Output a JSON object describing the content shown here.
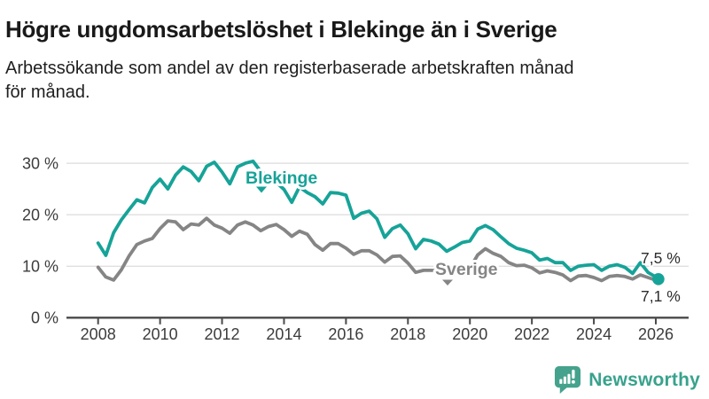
{
  "title": "Högre ungdomsarbetslöshet i Blekinge än i Sverige",
  "subtitle": "Arbetssökande som andel av den registerbaserade arbetskraften månad för månad.",
  "subtitle_lines": [
    "Arbetssökande som andel av den registerbaserade arbetskraften månad",
    "för månad."
  ],
  "branding": {
    "logo_text": "Newsworthy",
    "logo_icon": "speech-bubble-with-bar-chart-and-exclamation",
    "logo_color": "#45a28c"
  },
  "colors": {
    "blekinge_teal": "#16a398",
    "sverige_gray": "#858585",
    "grid_gray": "#dcdcdc",
    "axis_dark": "#4a4a4a",
    "text_dark": "#191919"
  },
  "chart_data": {
    "type": "line",
    "title": "Högre ungdomsarbetslöshet i Blekinge än i Sverige",
    "unit": "%",
    "grid": "horizontal",
    "ylim": [
      0,
      31
    ],
    "xlim": [
      2007,
      2027
    ],
    "y_ticks": {
      "values": [
        0,
        10,
        20,
        30
      ],
      "labels": [
        "0 %",
        "10 %",
        "20 %",
        "30 %"
      ]
    },
    "x_ticks": {
      "years": [
        2008,
        2010,
        2012,
        2014,
        2016,
        2018,
        2020,
        2022,
        2024,
        2026
      ],
      "labels": [
        "2008",
        "2010",
        "2012",
        "2014",
        "2016",
        "2018",
        "2020",
        "2022",
        "2024",
        "2026"
      ]
    },
    "x": [
      "2008-01",
      "2008-04",
      "2008-07",
      "2008-10",
      "2009-01",
      "2009-04",
      "2009-07",
      "2009-10",
      "2010-01",
      "2010-04",
      "2010-07",
      "2010-10",
      "2011-01",
      "2011-04",
      "2011-07",
      "2011-10",
      "2012-01",
      "2012-04",
      "2012-07",
      "2012-10",
      "2013-01",
      "2013-04",
      "2013-07",
      "2013-10",
      "2014-01",
      "2014-04",
      "2014-07",
      "2014-10",
      "2015-01",
      "2015-04",
      "2015-07",
      "2015-10",
      "2016-01",
      "2016-04",
      "2016-07",
      "2016-10",
      "2017-01",
      "2017-04",
      "2017-07",
      "2017-10",
      "2018-01",
      "2018-04",
      "2018-07",
      "2018-10",
      "2019-01",
      "2019-04",
      "2019-07",
      "2019-10",
      "2020-01",
      "2020-04",
      "2020-07",
      "2020-10",
      "2021-01",
      "2021-04",
      "2021-07",
      "2021-10",
      "2022-01",
      "2022-04",
      "2022-07",
      "2022-10",
      "2023-01",
      "2023-04",
      "2023-07",
      "2023-10",
      "2024-01",
      "2024-04",
      "2024-07",
      "2024-10",
      "2025-01",
      "2025-04",
      "2025-07",
      "2025-10",
      "2026-01",
      "2026-02"
    ],
    "series": [
      {
        "name": "Blekinge",
        "color": "#16a398",
        "label_value": "7,5 %",
        "values": [
          14.5,
          12.1,
          16.5,
          19.0,
          21.0,
          22.9,
          22.3,
          25.3,
          26.9,
          25.0,
          27.7,
          29.3,
          28.4,
          26.6,
          29.4,
          30.2,
          28.3,
          26.0,
          29.3,
          30.0,
          30.4,
          28.4,
          27.5,
          26.3,
          24.9,
          22.4,
          25.4,
          24.3,
          23.5,
          22.1,
          24.3,
          24.2,
          23.8,
          19.3,
          20.3,
          20.7,
          19.2,
          15.6,
          17.3,
          18.0,
          16.3,
          13.4,
          15.2,
          14.9,
          14.3,
          12.9,
          13.7,
          14.6,
          14.9,
          17.2,
          17.9,
          17.1,
          15.7,
          14.4,
          13.5,
          13.1,
          12.6,
          11.2,
          11.5,
          10.7,
          10.7,
          9.2,
          10.0,
          10.2,
          10.3,
          9.2,
          10.0,
          10.3,
          9.8,
          8.6,
          10.7,
          8.8,
          7.9,
          7.5
        ]
      },
      {
        "name": "Sverige",
        "color": "#858585",
        "label_value": "7,1 %",
        "values": [
          9.8,
          7.9,
          7.3,
          9.3,
          12.0,
          14.2,
          14.9,
          15.4,
          17.3,
          18.8,
          18.6,
          17.1,
          18.2,
          18.0,
          19.3,
          18.0,
          17.4,
          16.4,
          18.0,
          18.6,
          18.0,
          16.9,
          17.7,
          18.1,
          17.1,
          15.8,
          16.8,
          16.2,
          14.2,
          13.1,
          14.4,
          14.4,
          13.5,
          12.3,
          13.0,
          13.0,
          12.2,
          10.8,
          11.9,
          12.0,
          10.6,
          8.8,
          9.2,
          9.2,
          9.1,
          8.6,
          8.8,
          9.0,
          9.6,
          12.2,
          13.4,
          12.5,
          11.9,
          10.7,
          10.1,
          10.2,
          9.7,
          8.7,
          9.1,
          8.8,
          8.3,
          7.2,
          8.1,
          8.2,
          7.8,
          7.2,
          8.0,
          8.2,
          8.0,
          7.5,
          8.3,
          7.8,
          7.3,
          7.1
        ]
      }
    ]
  }
}
